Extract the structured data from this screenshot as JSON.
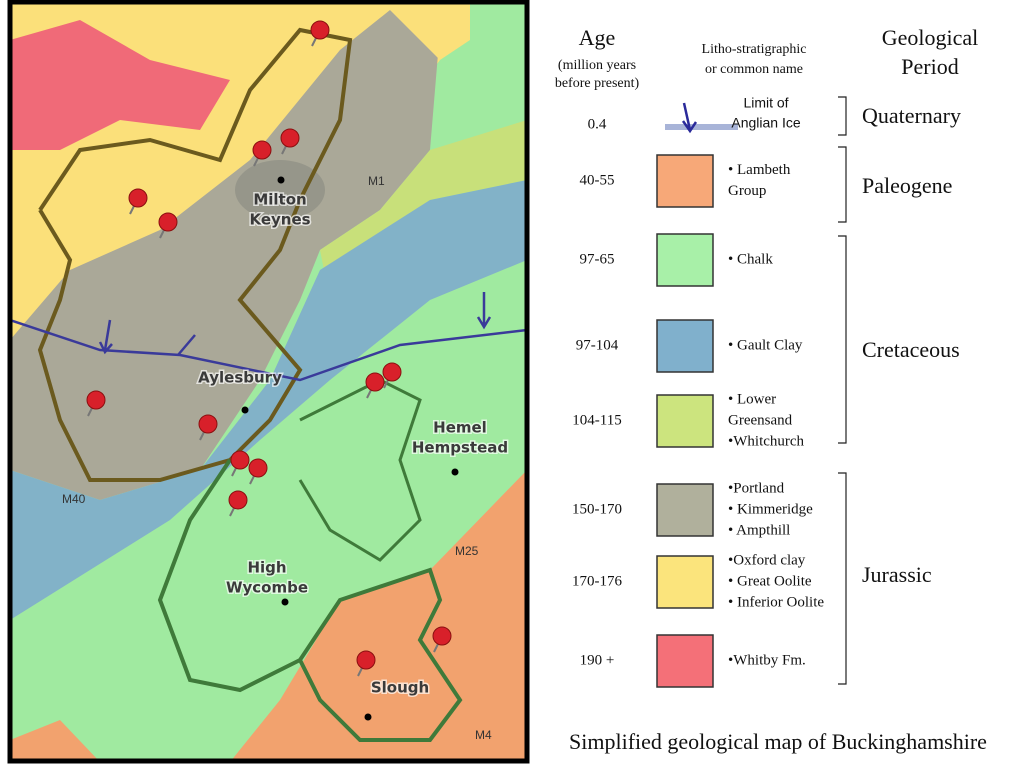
{
  "map": {
    "towns": [
      {
        "lines": [
          "Milton",
          "Keynes"
        ]
      },
      {
        "lines": [
          "Aylesbury"
        ]
      },
      {
        "lines": [
          "Hemel",
          "Hempstead"
        ]
      },
      {
        "lines": [
          "High",
          "Wycombe"
        ]
      },
      {
        "lines": [
          "Slough"
        ]
      }
    ],
    "roads": [
      "M1",
      "M40",
      "M25",
      "M4"
    ]
  },
  "legend": {
    "headers": {
      "age": "Age",
      "age_note": [
        "(million years",
        "before present)"
      ],
      "name": [
        "Litho-stratigraphic",
        "or common  name"
      ],
      "period": [
        "Geological",
        "Period"
      ]
    },
    "rows": [
      {
        "age": "0.4",
        "name": [
          "Limit of",
          "Anglian Ice"
        ]
      },
      {
        "age": "40-55",
        "name": [
          "• Lambeth",
          "Group"
        ],
        "color": "#f7a878"
      },
      {
        "age": "97-65",
        "name": [
          "• Chalk"
        ],
        "color": "#a8f0a8"
      },
      {
        "age": "97-104",
        "name": [
          "• Gault Clay"
        ],
        "color": "#80b0cc"
      },
      {
        "age": "104-115",
        "name": [
          "• Lower",
          "Greensand",
          "•Whitchurch"
        ],
        "color": "#cce47e"
      },
      {
        "age": "150-170",
        "name": [
          "•Portland",
          "• Kimmeridge",
          "• Ampthill"
        ],
        "color": "#b0b09c"
      },
      {
        "age": "170-176",
        "name": [
          "•Oxford clay",
          "• Great Oolite",
          "• Inferior Oolite"
        ],
        "color": "#fbe47c"
      },
      {
        "age": "190 +",
        "name": [
          "•Whitby Fm."
        ],
        "color": "#f47078"
      }
    ],
    "periods": [
      "Quaternary",
      "Paleogene",
      "Cretaceous",
      "Jurassic"
    ]
  },
  "caption": "Simplified geological map of Buckinghamshire"
}
